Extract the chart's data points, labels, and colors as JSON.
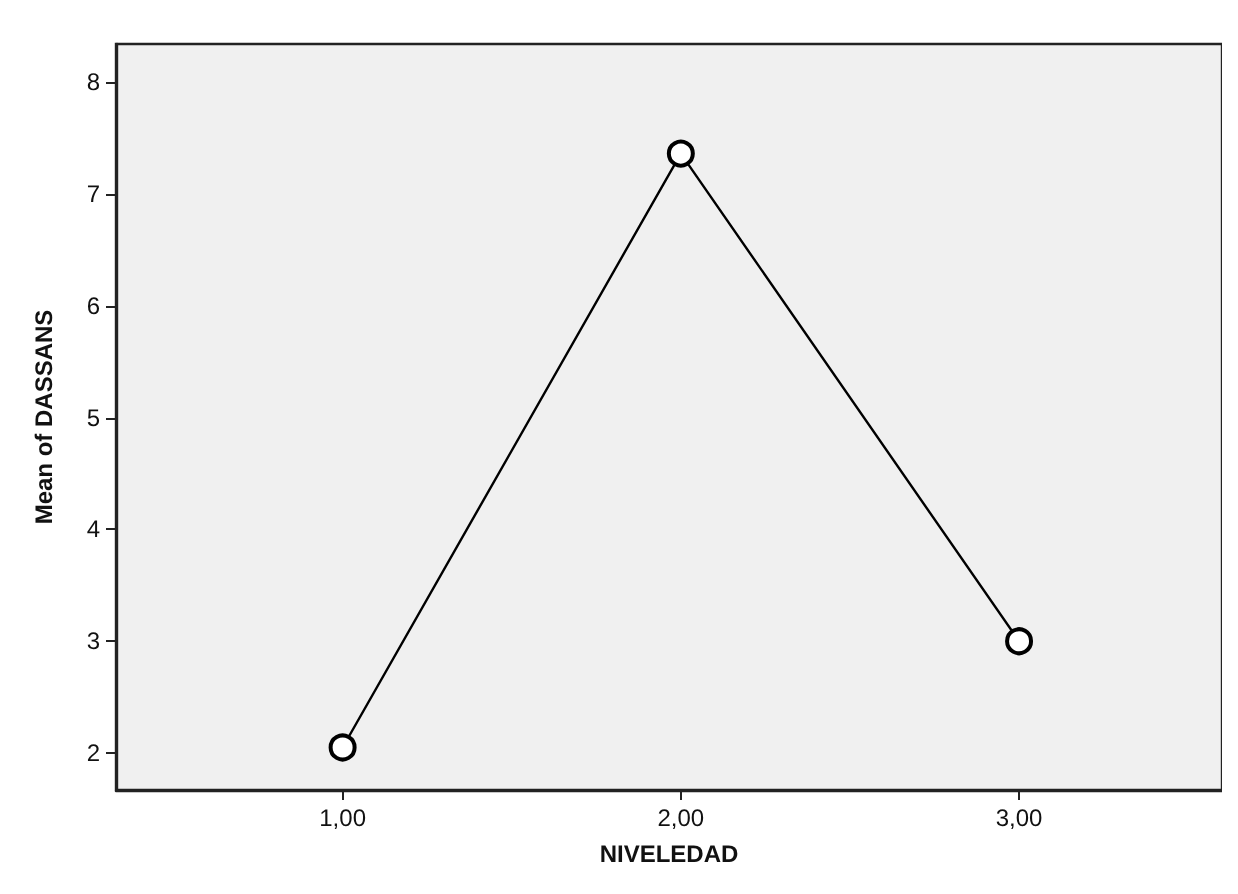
{
  "chart_data": {
    "type": "line",
    "xlabel": "NIVELEDAD",
    "ylabel": "Mean of DASSANS",
    "x": [
      1,
      2,
      3
    ],
    "series": [
      {
        "color": "#000000",
        "values": [
          2.05,
          7.36,
          3.0
        ]
      }
    ],
    "xlim": [
      0.33,
      3.6
    ],
    "xticks": [
      {
        "value": 1,
        "label": "1,00"
      },
      {
        "value": 2,
        "label": "2,00"
      },
      {
        "value": 3,
        "label": "3,00"
      }
    ],
    "ylim": [
      1.67,
      8.34
    ],
    "yticks": [
      2,
      3,
      4,
      5,
      6,
      7,
      8
    ],
    "grid": false,
    "marker": "circle",
    "line_style": "solid"
  }
}
